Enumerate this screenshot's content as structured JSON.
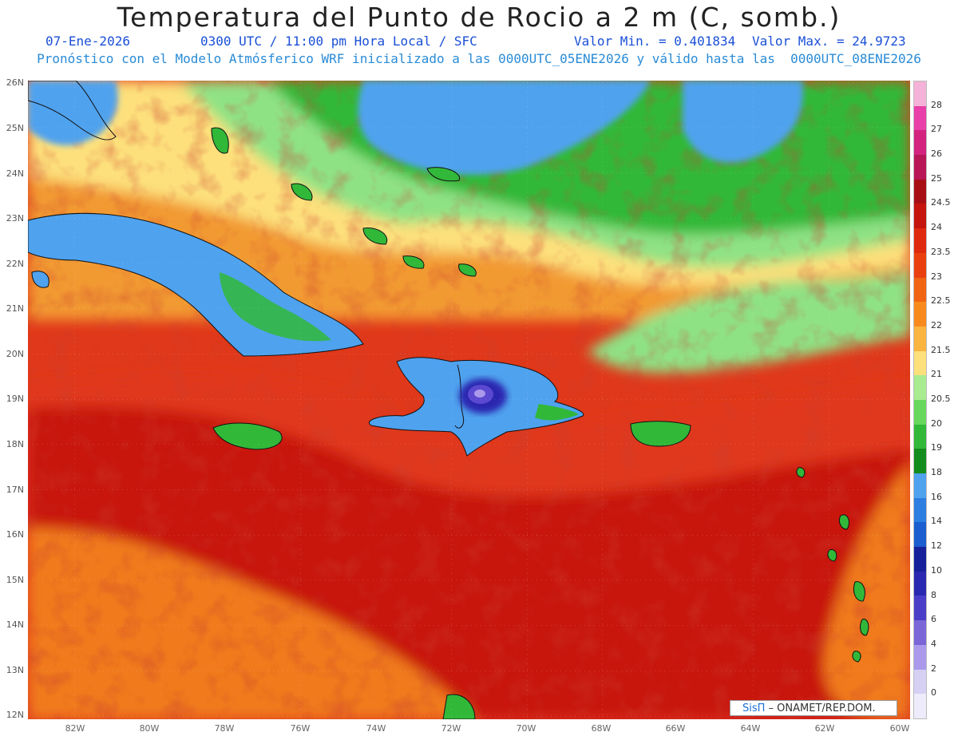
{
  "title": "Temperatura del Punto de Rocio a 2 m (C, somb.)",
  "subtitle": {
    "date": "07-Ene-2026",
    "time": "0300 UTC / 11:00 pm Hora Local / SFC",
    "min": "Valor Min. = 0.401834",
    "max": "Valor Max. = 24.9723",
    "model": "Pronóstico con el Modelo Atmósferico WRF inicializado a las 0000UTC_05ENE2026 y válido hasta las  0000UTC_08ENE2026"
  },
  "lat_labels": [
    "26N",
    "25N",
    "24N",
    "23N",
    "22N",
    "21N",
    "20N",
    "19N",
    "18N",
    "17N",
    "16N",
    "15N",
    "14N",
    "13N",
    "12N"
  ],
  "lon_labels": [
    "82W",
    "80W",
    "78W",
    "76W",
    "74W",
    "72W",
    "70W",
    "68W",
    "66W",
    "64W",
    "62W",
    "60W"
  ],
  "colorbar": {
    "labels": [
      "28",
      "27",
      "26",
      "25",
      "24.5",
      "24",
      "23.5",
      "23",
      "22.5",
      "22",
      "21.5",
      "21",
      "20.5",
      "20",
      "19",
      "18",
      "16",
      "14",
      "12",
      "10",
      "8",
      "6",
      "4",
      "2",
      "0"
    ],
    "colors": [
      "#f5b2d8",
      "#e83fa8",
      "#d3237f",
      "#b81657",
      "#a80f14",
      "#c5150e",
      "#df2a10",
      "#ea4010",
      "#f06414",
      "#f88a1d",
      "#fbb440",
      "#fde07c",
      "#a8eb90",
      "#68d85c",
      "#31b839",
      "#128c1c",
      "#4fa2ee",
      "#2c7fe0",
      "#1b5ecf",
      "#16209a",
      "#2a27b0",
      "#4a3ec8",
      "#7b66d8",
      "#ab99eb",
      "#d6d0f3",
      "#eeebfb"
    ]
  },
  "credit": {
    "brand": "SisΠ",
    "org": " – ONAMET/REP.DOM."
  },
  "colors": {
    "ocean_south": "#dc3a14",
    "ocean_deep": "#c8160d",
    "atlantic_green": "#31b839",
    "lightgreen": "#8fe284",
    "yellow": "#fde07c",
    "orange": "#f88a1d",
    "blue_land": "#4fa2ee",
    "purple_peak": "#5a48d0"
  }
}
